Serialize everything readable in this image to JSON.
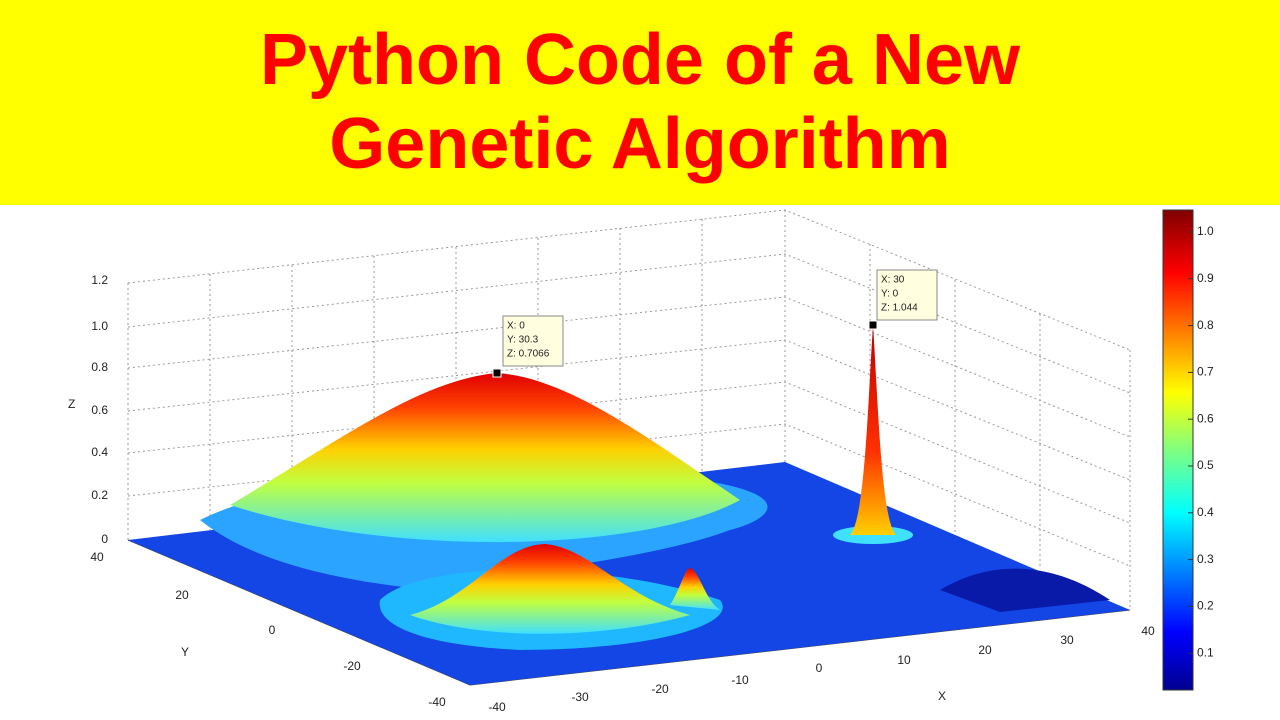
{
  "title": [
    "Python Code of a New",
    "Genetic Algorithm"
  ],
  "plot": {
    "z_label": "Z",
    "y_label": "Y",
    "x_label": "X",
    "z_ticks": [
      "0",
      "0.2",
      "0.4",
      "0.6",
      "0.8",
      "1.0",
      "1.2"
    ],
    "y_ticks": [
      "40",
      "20",
      "0",
      "-20",
      "-40"
    ],
    "x_ticks": [
      "-40",
      "-30",
      "-20",
      "-10",
      "0",
      "10",
      "20",
      "30",
      "40"
    ],
    "datatips": [
      [
        "X: 0",
        "Y: 30.3",
        "Z: 0.7066"
      ],
      [
        "X: 30",
        "Y: 0",
        "Z: 1.044"
      ]
    ],
    "colorbar_ticks": [
      "1.0",
      "0.9",
      "0.8",
      "0.7",
      "0.6",
      "0.5",
      "0.4",
      "0.3",
      "0.2",
      "0.1"
    ]
  }
}
